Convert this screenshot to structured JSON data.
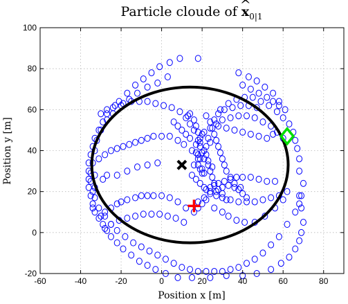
{
  "chart_data": {
    "type": "scatter",
    "title_text": "Particle cloude of ",
    "title_symbol_base": "x",
    "title_symbol_sub": "0|1",
    "xlabel": "Position x [m]",
    "ylabel": "Position y [m]",
    "xlim": [
      -60,
      90
    ],
    "ylim": [
      -20,
      100
    ],
    "xticks": [
      -60,
      -40,
      -20,
      0,
      20,
      40,
      60,
      80
    ],
    "yticks": [
      -20,
      0,
      20,
      40,
      60,
      80,
      100
    ],
    "grid": true,
    "colors": {
      "particles": "#0000ff",
      "ellipse": "#000000",
      "estimate": "#000000",
      "true_position": "#ff0000",
      "sensor": "#00dd00"
    },
    "particles": [
      [
        8,
        -22
      ],
      [
        15,
        -22
      ],
      [
        24,
        -22
      ],
      [
        32,
        -21
      ],
      [
        40,
        -21
      ],
      [
        2,
        -20
      ],
      [
        47,
        -20
      ],
      [
        -3,
        -18
      ],
      [
        54,
        -18
      ],
      [
        -7,
        -16
      ],
      [
        59,
        -15
      ],
      [
        -11,
        -14
      ],
      [
        63,
        -12
      ],
      [
        -15,
        -11
      ],
      [
        66,
        -8
      ],
      [
        -19,
        -8
      ],
      [
        68,
        -4
      ],
      [
        -22,
        -5
      ],
      [
        69,
        0
      ],
      [
        -25,
        -2
      ],
      [
        70,
        5
      ],
      [
        -27,
        1
      ],
      [
        69,
        12
      ],
      [
        -29,
        4
      ],
      [
        68,
        18
      ],
      [
        -31,
        7
      ],
      [
        -33,
        10
      ],
      [
        -34,
        14
      ],
      [
        -35,
        18
      ],
      [
        -36,
        22
      ],
      [
        -36,
        26
      ],
      [
        -36,
        30
      ],
      [
        -36,
        34
      ],
      [
        -35,
        38
      ],
      [
        -34,
        42
      ],
      [
        -33,
        46
      ],
      [
        -31,
        50
      ],
      [
        -29,
        54
      ],
      [
        -27,
        58
      ],
      [
        -24,
        61
      ],
      [
        -21,
        64
      ],
      [
        -17,
        68
      ],
      [
        -13,
        72
      ],
      [
        -9,
        75
      ],
      [
        -5,
        78
      ],
      [
        -1,
        81
      ],
      [
        4,
        83
      ],
      [
        9,
        85
      ],
      [
        18,
        85
      ],
      [
        -34,
        12
      ],
      [
        -33,
        17
      ],
      [
        -33,
        22
      ],
      [
        -33,
        28
      ],
      [
        -34,
        34
      ],
      [
        -33,
        40
      ],
      [
        -32,
        45
      ],
      [
        -30,
        50
      ],
      [
        -27,
        55
      ],
      [
        -24,
        58
      ],
      [
        -20,
        62
      ],
      [
        -16,
        65
      ],
      [
        -12,
        68
      ],
      [
        -7,
        71
      ],
      [
        -2,
        73
      ],
      [
        3,
        76
      ],
      [
        -30,
        8
      ],
      [
        -28,
        10
      ],
      [
        -25,
        12
      ],
      [
        -22,
        14
      ],
      [
        -20,
        15
      ],
      [
        -17,
        16
      ],
      [
        -13,
        17
      ],
      [
        -10,
        18
      ],
      [
        -7,
        18
      ],
      [
        -4,
        18
      ],
      [
        0,
        18
      ],
      [
        4,
        17
      ],
      [
        8,
        15
      ],
      [
        12,
        12
      ],
      [
        -31,
        36
      ],
      [
        -28,
        38
      ],
      [
        -25,
        40
      ],
      [
        -22,
        41
      ],
      [
        -19,
        42
      ],
      [
        -16,
        43
      ],
      [
        -13,
        44
      ],
      [
        -10,
        45
      ],
      [
        -7,
        46
      ],
      [
        -4,
        47
      ],
      [
        0,
        47
      ],
      [
        4,
        47
      ],
      [
        8,
        45
      ],
      [
        11,
        43
      ],
      [
        -30,
        58
      ],
      [
        -27,
        60
      ],
      [
        -23,
        62
      ],
      [
        -19,
        63
      ],
      [
        -15,
        64
      ],
      [
        -11,
        64
      ],
      [
        -7,
        64
      ],
      [
        -3,
        63
      ],
      [
        1,
        62
      ],
      [
        5,
        61
      ],
      [
        9,
        59
      ],
      [
        13,
        57
      ],
      [
        -28,
        2
      ],
      [
        -25,
        4
      ],
      [
        -21,
        6
      ],
      [
        -17,
        7
      ],
      [
        -13,
        8
      ],
      [
        -9,
        9
      ],
      [
        -5,
        9
      ],
      [
        -1,
        9
      ],
      [
        3,
        8
      ],
      [
        7,
        7
      ],
      [
        11,
        5
      ],
      [
        14,
        58
      ],
      [
        16,
        55
      ],
      [
        17,
        52
      ],
      [
        18,
        49
      ],
      [
        18,
        45
      ],
      [
        19,
        42
      ],
      [
        20,
        39
      ],
      [
        21,
        36
      ],
      [
        23,
        33
      ],
      [
        24,
        30
      ],
      [
        25,
        27
      ],
      [
        26,
        24
      ],
      [
        28,
        21
      ],
      [
        30,
        19
      ],
      [
        32,
        16
      ],
      [
        22,
        57
      ],
      [
        24,
        54
      ],
      [
        25,
        51
      ],
      [
        26,
        48
      ],
      [
        27,
        45
      ],
      [
        28,
        42
      ],
      [
        29,
        39
      ],
      [
        30,
        36
      ],
      [
        31,
        33
      ],
      [
        32,
        30
      ],
      [
        34,
        27
      ],
      [
        36,
        24
      ],
      [
        38,
        21
      ],
      [
        40,
        19
      ],
      [
        42,
        17
      ],
      [
        15,
        28
      ],
      [
        17,
        26
      ],
      [
        19,
        24
      ],
      [
        21,
        22
      ],
      [
        24,
        20
      ],
      [
        27,
        18
      ],
      [
        30,
        17
      ],
      [
        34,
        16
      ],
      [
        38,
        15
      ],
      [
        42,
        15
      ],
      [
        46,
        15
      ],
      [
        50,
        16
      ],
      [
        54,
        17
      ],
      [
        58,
        18
      ],
      [
        62,
        20
      ],
      [
        15,
        40
      ],
      [
        17,
        43
      ],
      [
        19,
        46
      ],
      [
        21,
        49
      ],
      [
        24,
        51
      ],
      [
        27,
        53
      ],
      [
        30,
        55
      ],
      [
        34,
        56
      ],
      [
        38,
        57
      ],
      [
        42,
        57
      ],
      [
        46,
        56
      ],
      [
        50,
        54
      ],
      [
        54,
        52
      ],
      [
        57,
        49
      ],
      [
        60,
        46
      ],
      [
        22,
        21
      ],
      [
        24,
        22
      ],
      [
        26,
        23
      ],
      [
        28,
        24
      ],
      [
        31,
        25
      ],
      [
        34,
        26
      ],
      [
        37,
        27
      ],
      [
        40,
        27
      ],
      [
        44,
        27
      ],
      [
        48,
        26
      ],
      [
        52,
        25
      ],
      [
        56,
        25
      ],
      [
        16,
        10
      ],
      [
        18,
        12
      ],
      [
        20,
        14
      ],
      [
        22,
        16
      ],
      [
        26,
        12
      ],
      [
        30,
        10
      ],
      [
        33,
        8
      ],
      [
        37,
        6
      ],
      [
        41,
        5
      ],
      [
        46,
        5
      ],
      [
        51,
        8
      ],
      [
        56,
        12
      ],
      [
        60,
        16
      ],
      [
        18,
        15
      ],
      [
        21,
        17
      ],
      [
        24,
        19
      ],
      [
        27,
        20
      ],
      [
        30,
        22
      ],
      [
        33,
        23
      ],
      [
        36,
        22
      ],
      [
        39,
        22
      ],
      [
        18,
        33
      ],
      [
        19,
        31
      ],
      [
        20,
        29
      ],
      [
        19,
        36
      ],
      [
        18,
        38
      ],
      [
        21,
        40
      ],
      [
        22,
        42
      ],
      [
        24,
        44
      ],
      [
        23,
        46
      ],
      [
        20,
        48
      ],
      [
        16,
        50
      ],
      [
        14,
        53
      ],
      [
        12,
        56
      ],
      [
        29,
        60
      ],
      [
        33,
        63
      ],
      [
        37,
        65
      ],
      [
        41,
        66
      ],
      [
        45,
        66
      ],
      [
        49,
        64
      ],
      [
        53,
        62
      ],
      [
        57,
        59
      ],
      [
        60,
        56
      ],
      [
        63,
        53
      ],
      [
        65,
        49
      ],
      [
        66,
        45
      ],
      [
        67,
        41
      ],
      [
        68,
        36
      ],
      [
        68,
        30
      ],
      [
        70,
        24
      ],
      [
        69,
        18
      ],
      [
        68,
        14
      ],
      [
        66,
        10
      ],
      [
        62,
        4
      ],
      [
        58,
        -2
      ],
      [
        54,
        -6
      ],
      [
        50,
        -10
      ],
      [
        46,
        -13
      ],
      [
        42,
        -15
      ],
      [
        38,
        -17
      ],
      [
        34,
        -18
      ],
      [
        30,
        -19
      ],
      [
        26,
        -19
      ],
      [
        22,
        -19
      ],
      [
        18,
        -19
      ],
      [
        14,
        -18
      ],
      [
        10,
        -17
      ],
      [
        6,
        -15
      ],
      [
        2,
        -13
      ],
      [
        -2,
        -11
      ],
      [
        -6,
        -9
      ],
      [
        -10,
        -7
      ],
      [
        -14,
        -5
      ],
      [
        -18,
        -2
      ],
      [
        -22,
        1
      ],
      [
        -25,
        4
      ],
      [
        -28,
        8
      ],
      [
        -31,
        12
      ],
      [
        -35,
        29
      ],
      [
        -35,
        25
      ],
      [
        -34,
        20
      ],
      [
        -29,
        26
      ],
      [
        -27,
        28
      ],
      [
        -22,
        28
      ],
      [
        -17,
        30
      ],
      [
        -12,
        32
      ],
      [
        -7,
        33
      ],
      [
        -2,
        34
      ],
      [
        40,
        72
      ],
      [
        44,
        70
      ],
      [
        48,
        68
      ],
      [
        52,
        66
      ],
      [
        55,
        64
      ],
      [
        58,
        62
      ],
      [
        61,
        60
      ],
      [
        58,
        64
      ],
      [
        55,
        68
      ],
      [
        51,
        71
      ],
      [
        47,
        74
      ],
      [
        43,
        76
      ],
      [
        38,
        78
      ],
      [
        18,
        36
      ],
      [
        20,
        31
      ],
      [
        19,
        44
      ],
      [
        21,
        29
      ],
      [
        17,
        39
      ],
      [
        22,
        38
      ],
      [
        23,
        35
      ],
      [
        16,
        33
      ],
      [
        25,
        32
      ],
      [
        14,
        46
      ],
      [
        12,
        48
      ],
      [
        10,
        50
      ],
      [
        8,
        52
      ],
      [
        6,
        54
      ],
      [
        55,
        48
      ],
      [
        52,
        46
      ],
      [
        48,
        47
      ],
      [
        44,
        48
      ],
      [
        40,
        49
      ],
      [
        36,
        50
      ],
      [
        32,
        51
      ],
      [
        28,
        52
      ],
      [
        26,
        55
      ],
      [
        28,
        58
      ],
      [
        31,
        60
      ],
      [
        35,
        61
      ],
      [
        39,
        62
      ],
      [
        43,
        62
      ],
      [
        47,
        61
      ]
    ],
    "ellipse": {
      "cx": 14,
      "cy": 33,
      "rx": 48.5,
      "ry": 38
    },
    "estimate": {
      "x": 10,
      "y": 33,
      "marker": "x"
    },
    "true_position": {
      "x": 16,
      "y": 13,
      "marker": "+"
    },
    "sensor": {
      "x": 62,
      "y": 47,
      "marker": "diamond"
    }
  }
}
